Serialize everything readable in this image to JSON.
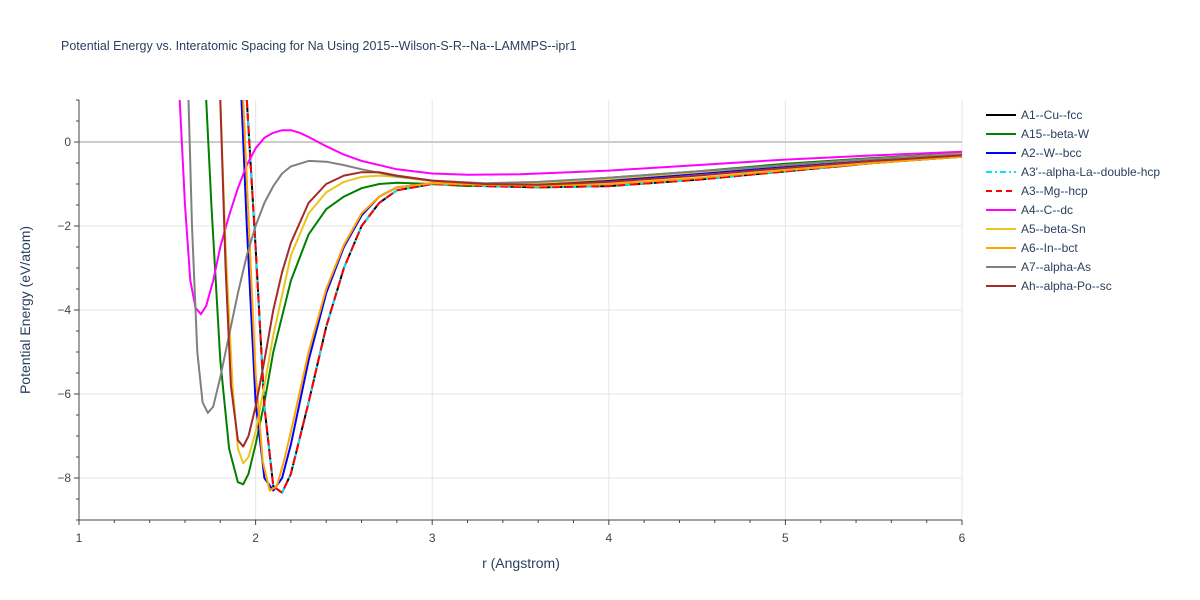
{
  "chart_data": {
    "type": "line",
    "title": "Potential Energy vs. Interatomic Spacing for Na Using 2015--Wilson-S-R--Na--LAMMPS--ipr1",
    "xlabel": "r (Angstrom)",
    "ylabel": "Potential Energy (eV/atom)",
    "xlim": [
      1,
      6
    ],
    "ylim": [
      -9,
      1
    ],
    "xticks": [
      1,
      2,
      3,
      4,
      5,
      6
    ],
    "yticks": [
      -8,
      -6,
      -4,
      -2,
      0
    ],
    "grid": true,
    "legend_position": "top-right",
    "series": [
      {
        "name": "A1--Cu--fcc",
        "color": "#000000",
        "dash": "solid",
        "x": [
          1.95,
          2.0,
          2.05,
          2.1,
          2.15,
          2.2,
          2.3,
          2.4,
          2.5,
          2.6,
          2.7,
          2.8,
          3.0,
          3.3,
          3.6,
          4.0,
          4.5,
          5.0,
          5.5,
          6.0
        ],
        "y": [
          1.0,
          -2.5,
          -6.3,
          -8.2,
          -8.35,
          -7.9,
          -6.2,
          -4.4,
          -3.0,
          -2.0,
          -1.45,
          -1.15,
          -1.0,
          -1.05,
          -1.08,
          -1.05,
          -0.9,
          -0.7,
          -0.5,
          -0.35
        ]
      },
      {
        "name": "A15--beta-W",
        "color": "#008000",
        "dash": "solid",
        "x": [
          1.72,
          1.75,
          1.8,
          1.85,
          1.9,
          1.93,
          1.96,
          2.0,
          2.05,
          2.1,
          2.2,
          2.3,
          2.4,
          2.5,
          2.6,
          2.7,
          2.8,
          3.0,
          3.2,
          3.5,
          4.0,
          4.5,
          5.0,
          5.5,
          6.0
        ],
        "y": [
          1.0,
          -1.5,
          -5.2,
          -7.3,
          -8.1,
          -8.15,
          -7.9,
          -7.2,
          -6.2,
          -5.0,
          -3.3,
          -2.2,
          -1.6,
          -1.3,
          -1.1,
          -1.0,
          -0.97,
          -1.0,
          -1.05,
          -1.0,
          -0.85,
          -0.7,
          -0.52,
          -0.38,
          -0.27
        ]
      },
      {
        "name": "A2--W--bcc",
        "color": "#0000ff",
        "dash": "solid",
        "x": [
          1.92,
          1.95,
          2.0,
          2.05,
          2.1,
          2.15,
          2.2,
          2.3,
          2.4,
          2.5,
          2.6,
          2.7,
          2.8,
          3.0,
          3.3,
          3.6,
          4.0,
          4.5,
          5.0,
          5.5,
          6.0
        ],
        "y": [
          1.0,
          -2.0,
          -6.2,
          -8.0,
          -8.3,
          -8.0,
          -7.2,
          -5.2,
          -3.6,
          -2.5,
          -1.75,
          -1.3,
          -1.08,
          -0.98,
          -1.0,
          -1.0,
          -0.92,
          -0.75,
          -0.58,
          -0.43,
          -0.3
        ]
      },
      {
        "name": "A3'--alpha-La--double-hcp",
        "color": "#00e5ff",
        "dash": "dashdot",
        "x": [
          1.95,
          2.0,
          2.05,
          2.1,
          2.15,
          2.2,
          2.3,
          2.4,
          2.5,
          2.6,
          2.7,
          2.8,
          3.0,
          3.3,
          3.6,
          4.0,
          4.5,
          5.0,
          5.5,
          6.0
        ],
        "y": [
          1.0,
          -2.5,
          -6.3,
          -8.2,
          -8.35,
          -7.9,
          -6.2,
          -4.4,
          -3.0,
          -2.0,
          -1.45,
          -1.15,
          -1.0,
          -1.05,
          -1.08,
          -1.05,
          -0.9,
          -0.7,
          -0.5,
          -0.35
        ]
      },
      {
        "name": "A3--Mg--hcp",
        "color": "#ff0000",
        "dash": "dash",
        "x": [
          1.95,
          2.0,
          2.05,
          2.1,
          2.15,
          2.2,
          2.3,
          2.4,
          2.5,
          2.6,
          2.7,
          2.8,
          3.0,
          3.3,
          3.6,
          4.0,
          4.5,
          5.0,
          5.5,
          6.0
        ],
        "y": [
          1.0,
          -2.5,
          -6.3,
          -8.2,
          -8.35,
          -7.9,
          -6.2,
          -4.4,
          -3.0,
          -2.0,
          -1.45,
          -1.15,
          -1.0,
          -1.05,
          -1.08,
          -1.05,
          -0.9,
          -0.7,
          -0.5,
          -0.35
        ]
      },
      {
        "name": "A4--C--dc",
        "color": "#ff00ff",
        "dash": "solid",
        "x": [
          1.57,
          1.6,
          1.63,
          1.66,
          1.69,
          1.72,
          1.76,
          1.8,
          1.85,
          1.9,
          1.95,
          2.0,
          2.05,
          2.1,
          2.15,
          2.2,
          2.25,
          2.3,
          2.4,
          2.5,
          2.6,
          2.8,
          3.0,
          3.2,
          3.5,
          4.0,
          4.5,
          5.0,
          5.5,
          6.0
        ],
        "y": [
          1.0,
          -1.5,
          -3.3,
          -3.95,
          -4.1,
          -3.9,
          -3.3,
          -2.5,
          -1.75,
          -1.1,
          -0.55,
          -0.15,
          0.1,
          0.22,
          0.28,
          0.28,
          0.22,
          0.12,
          -0.1,
          -0.3,
          -0.45,
          -0.65,
          -0.75,
          -0.78,
          -0.77,
          -0.68,
          -0.55,
          -0.42,
          -0.32,
          -0.23
        ]
      },
      {
        "name": "A5--beta-Sn",
        "color": "#e8c620",
        "dash": "solid",
        "x": [
          1.8,
          1.83,
          1.87,
          1.9,
          1.93,
          1.96,
          2.0,
          2.05,
          2.1,
          2.2,
          2.3,
          2.4,
          2.5,
          2.6,
          2.7,
          2.8,
          2.9,
          3.0,
          3.2,
          3.5,
          4.0,
          4.5,
          5.0,
          5.5,
          6.0
        ],
        "y": [
          1.0,
          -2.5,
          -5.8,
          -7.3,
          -7.65,
          -7.5,
          -6.9,
          -5.8,
          -4.6,
          -2.7,
          -1.7,
          -1.2,
          -0.95,
          -0.83,
          -0.8,
          -0.83,
          -0.88,
          -0.93,
          -0.98,
          -1.0,
          -0.88,
          -0.72,
          -0.55,
          -0.4,
          -0.28
        ]
      },
      {
        "name": "A6--In--bct",
        "color": "#ffa500",
        "dash": "solid",
        "x": [
          1.93,
          1.96,
          2.0,
          2.04,
          2.08,
          2.12,
          2.16,
          2.2,
          2.3,
          2.4,
          2.5,
          2.6,
          2.7,
          2.8,
          3.0,
          3.3,
          3.6,
          4.0,
          4.5,
          5.0,
          5.5,
          6.0
        ],
        "y": [
          1.0,
          -1.8,
          -5.5,
          -7.6,
          -8.3,
          -8.2,
          -7.6,
          -6.9,
          -5.0,
          -3.5,
          -2.45,
          -1.7,
          -1.3,
          -1.08,
          -0.98,
          -1.02,
          -1.04,
          -1.0,
          -0.86,
          -0.67,
          -0.5,
          -0.35
        ]
      },
      {
        "name": "A7--alpha-As",
        "color": "#808080",
        "dash": "solid",
        "x": [
          1.62,
          1.64,
          1.67,
          1.7,
          1.73,
          1.76,
          1.8,
          1.85,
          1.9,
          1.95,
          2.0,
          2.05,
          2.1,
          2.15,
          2.2,
          2.3,
          2.4,
          2.5,
          2.6,
          2.8,
          3.0,
          3.3,
          3.6,
          4.0,
          4.5,
          5.0,
          5.5,
          6.0
        ],
        "y": [
          1.0,
          -2.0,
          -5.0,
          -6.2,
          -6.45,
          -6.3,
          -5.6,
          -4.6,
          -3.6,
          -2.7,
          -2.0,
          -1.45,
          -1.05,
          -0.75,
          -0.58,
          -0.45,
          -0.47,
          -0.55,
          -0.65,
          -0.82,
          -0.92,
          -0.98,
          -0.95,
          -0.85,
          -0.7,
          -0.55,
          -0.4,
          -0.29
        ]
      },
      {
        "name": "Ah--alpha-Po--sc",
        "color": "#a52a2a",
        "dash": "solid",
        "x": [
          1.8,
          1.83,
          1.86,
          1.9,
          1.93,
          1.96,
          2.0,
          2.05,
          2.1,
          2.15,
          2.2,
          2.3,
          2.4,
          2.5,
          2.6,
          2.7,
          2.8,
          3.0,
          3.3,
          3.6,
          4.0,
          4.5,
          5.0,
          5.5,
          6.0
        ],
        "y": [
          1.0,
          -3.0,
          -5.8,
          -7.1,
          -7.25,
          -7.0,
          -6.3,
          -5.2,
          -4.0,
          -3.1,
          -2.4,
          -1.45,
          -1.0,
          -0.8,
          -0.72,
          -0.72,
          -0.8,
          -0.92,
          -1.0,
          -1.02,
          -0.95,
          -0.8,
          -0.62,
          -0.45,
          -0.32
        ]
      }
    ]
  }
}
